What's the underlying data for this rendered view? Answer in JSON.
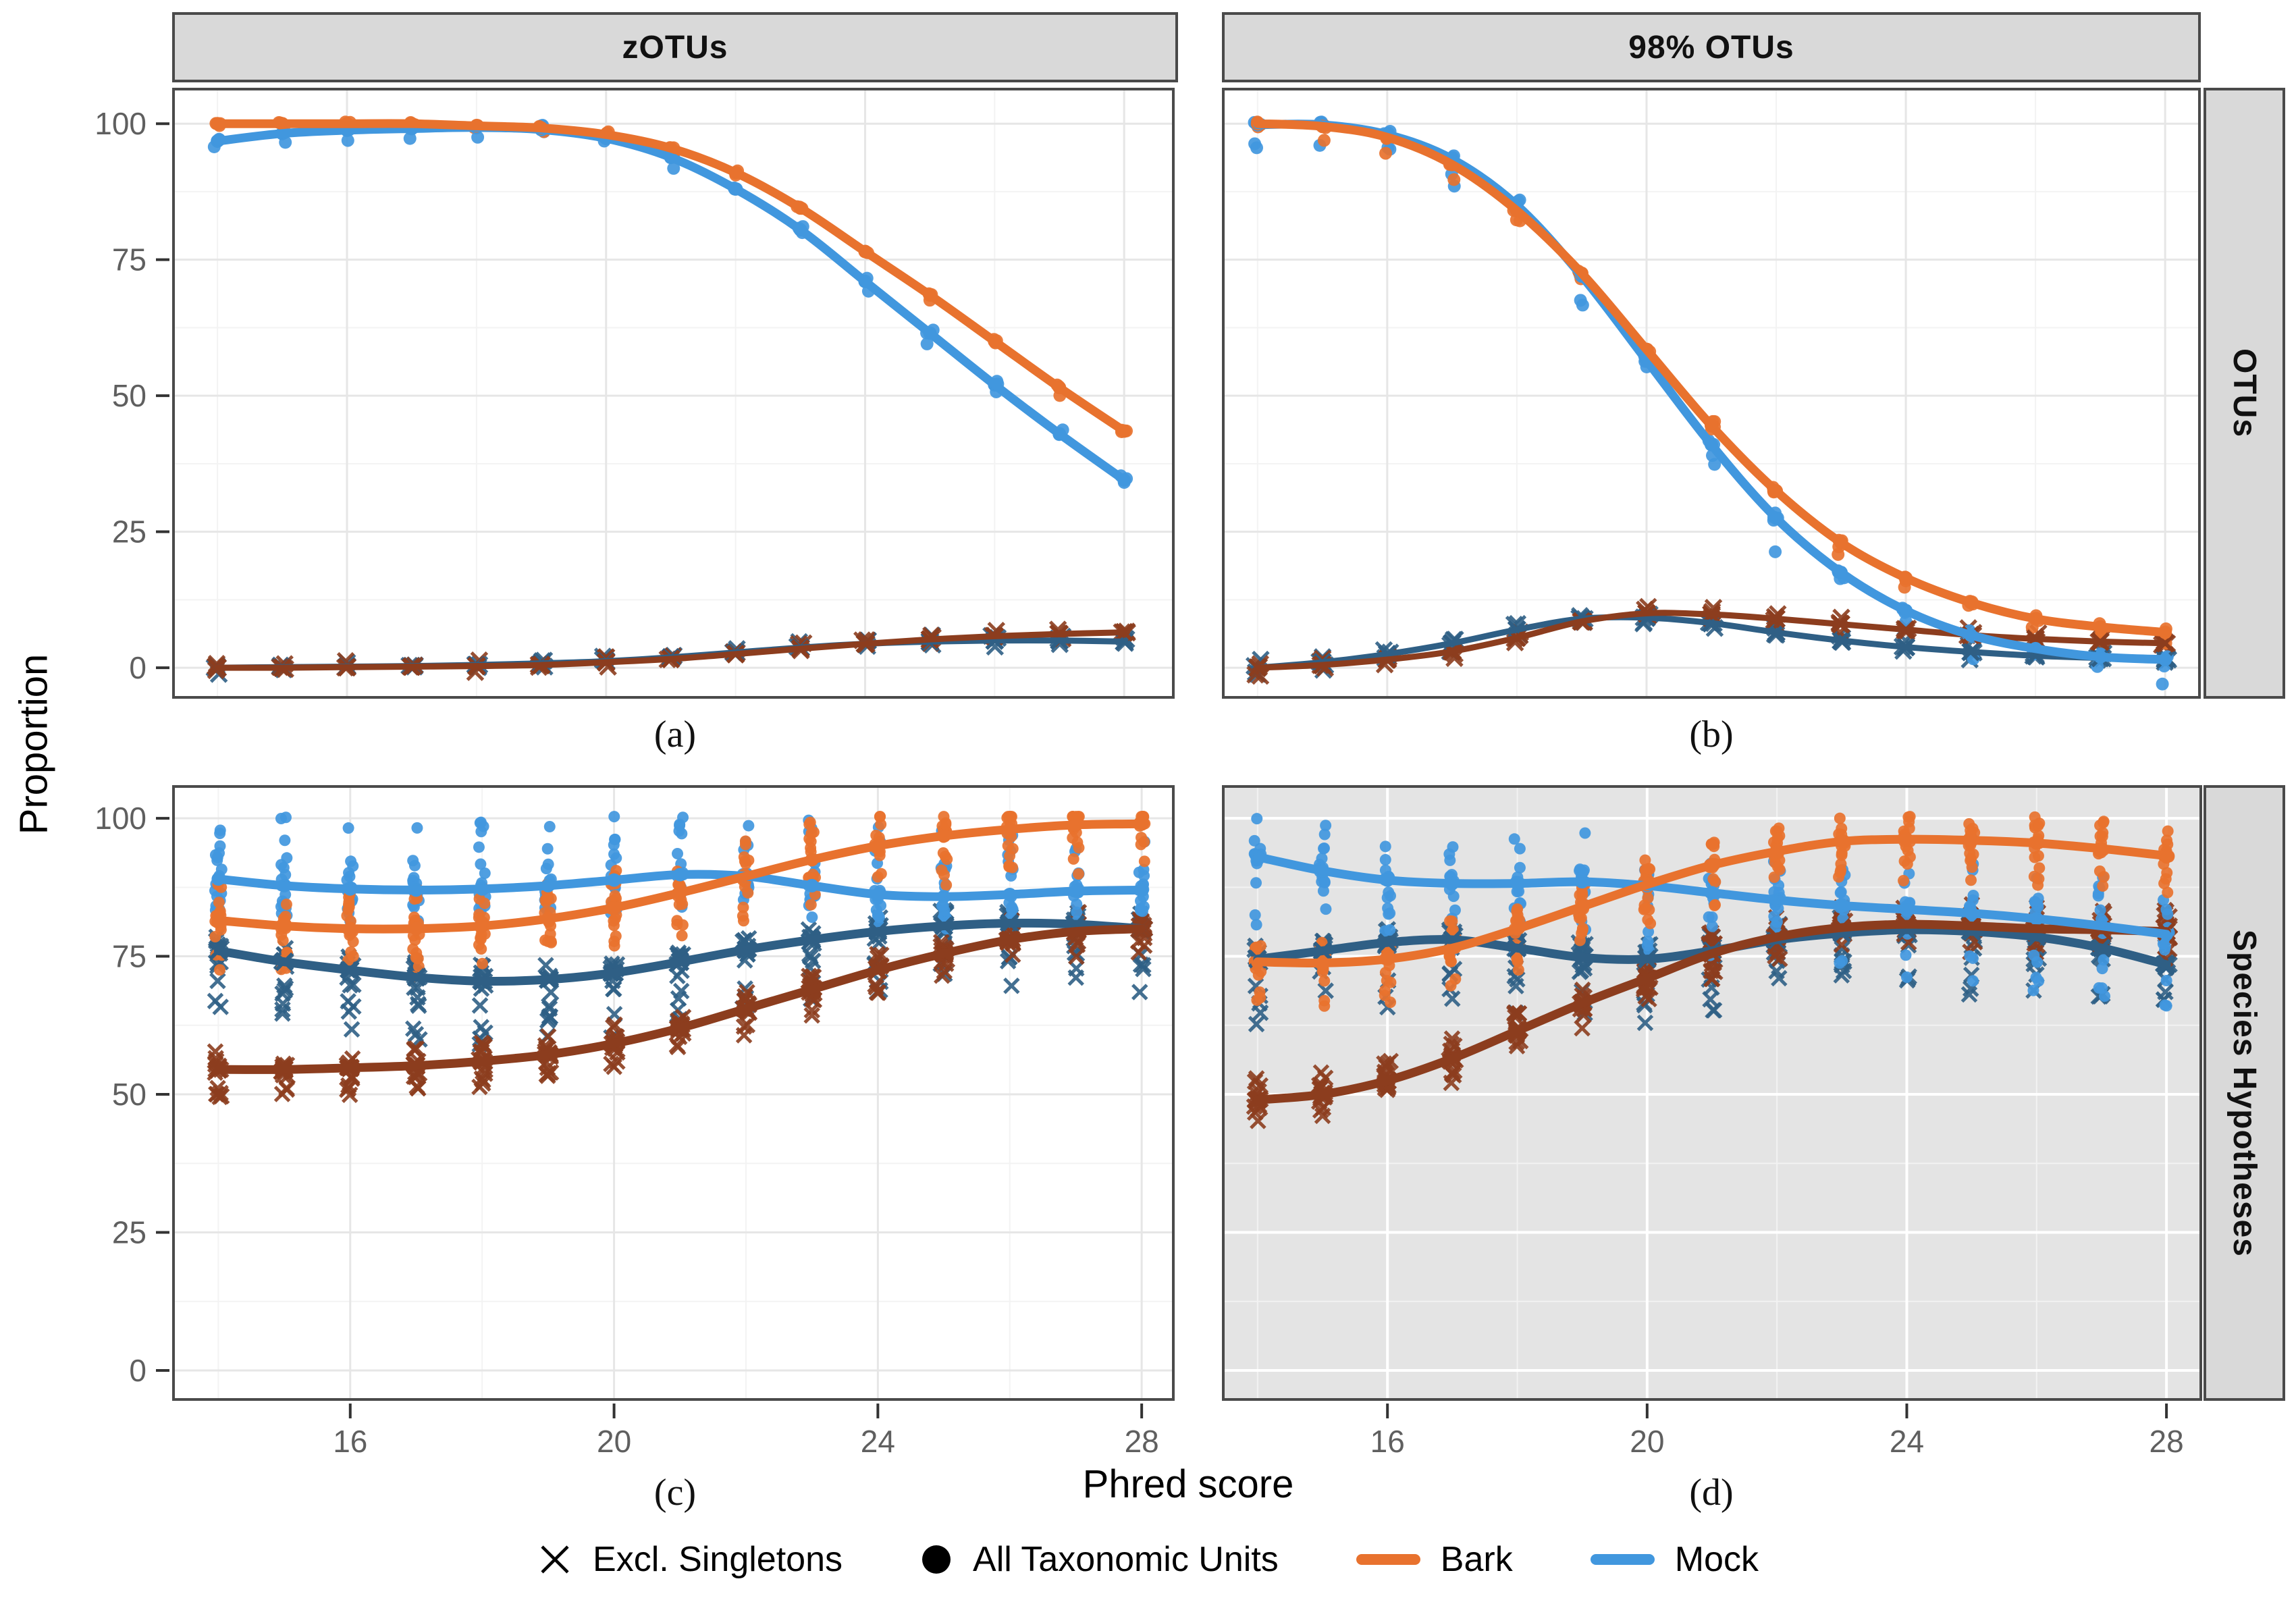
{
  "axis": {
    "y_title": "Proportion",
    "x_title": "Phred score"
  },
  "strips": {
    "top_left": "zOTUs",
    "top_right": "98% OTUs",
    "right_top": "OTUs",
    "right_bottom": "Species Hypotheses"
  },
  "panel_letters": {
    "a": "(a)",
    "b": "(b)",
    "c": "(c)",
    "d": "(d)"
  },
  "legend": {
    "items": [
      {
        "glyph": "x-mark",
        "label": "Excl. Singletons"
      },
      {
        "glyph": "dot",
        "label": "All Taxonomic Units"
      },
      {
        "glyph": "line",
        "series": "bark",
        "label": "Bark"
      },
      {
        "glyph": "line",
        "series": "mock",
        "label": "Mock"
      }
    ]
  },
  "colors": {
    "bark": "#E8722E",
    "mock": "#4197DE",
    "bark_excl": "#8C3D1E",
    "mock_excl": "#2F5F85",
    "strip_bg": "#D9D9D9",
    "strip_border": "#4A4A4A",
    "panel_border": "#4A4A4A",
    "grid_major": "#E6E6E6",
    "grid_minor": "#F3F3F3",
    "panel_grey_bg": "#E4E4E4",
    "grid_on_grey_major": "#FFFFFF",
    "grid_on_grey_minor": "#F2F2F2",
    "tick_label": "#5F5F5F",
    "tick_mark": "#333333"
  },
  "chart_data": [
    {
      "id": "a",
      "type": "line",
      "title": "zOTUs",
      "facet_row": "OTUs",
      "xlabel": "Phred score",
      "ylabel": "Proportion",
      "x": [
        14,
        15,
        16,
        17,
        18,
        19,
        20,
        21,
        22,
        23,
        24,
        25,
        26,
        27,
        28
      ],
      "xticks": [
        16,
        20,
        24,
        28
      ],
      "yticks": [
        0,
        25,
        50,
        75,
        100
      ],
      "xlim": [
        13.3,
        28.78
      ],
      "ylim": [
        -5.7,
        106.6
      ],
      "show_y_ticks": true,
      "show_x_ticks": false,
      "background": "#FFFFFF",
      "series": [
        {
          "name": "Mock — Excl. Singletons",
          "color": "mock_excl",
          "marker": "x",
          "width": 9,
          "values": [
            0,
            0.1,
            0.2,
            0.3,
            0.5,
            0.8,
            1.2,
            1.9,
            2.8,
            3.7,
            4.4,
            4.8,
            5,
            5,
            4.8
          ],
          "scatter": {
            "n": 3,
            "up": 1.2,
            "down": 1.2
          }
        },
        {
          "name": "Bark — Excl. Singletons",
          "color": "bark_excl",
          "marker": "x",
          "width": 9,
          "values": [
            0,
            0,
            0.1,
            0.2,
            0.3,
            0.5,
            1,
            1.6,
            2.5,
            3.5,
            4.4,
            5.2,
            5.8,
            6.2,
            6.5
          ],
          "scatter": {
            "n": 3,
            "up": 1.2,
            "down": 1.2
          }
        },
        {
          "name": "Mock — All Taxonomic Units",
          "color": "mock",
          "marker": "circle",
          "width": 13,
          "values": [
            96.8,
            98.2,
            98.8,
            99.1,
            99.3,
            98.9,
            97.3,
            93.8,
            88,
            80.5,
            71,
            61.5,
            52,
            43,
            34.5
          ],
          "scatter": {
            "n": 3,
            "up": 1,
            "down": 2.5
          }
        },
        {
          "name": "Bark — All Taxonomic Units",
          "color": "bark",
          "marker": "circle",
          "width": 13,
          "values": [
            100,
            100,
            100,
            100,
            99.6,
            99.2,
            98,
            95.5,
            91,
            84.5,
            76.5,
            68.5,
            60,
            51.5,
            43.5
          ],
          "scatter": {
            "n": 3,
            "up": 0.5,
            "down": 1.5
          }
        }
      ]
    },
    {
      "id": "b",
      "type": "line",
      "title": "98% OTUs",
      "facet_row": "OTUs",
      "xlabel": "Phred score",
      "ylabel": "Proportion",
      "x": [
        14,
        15,
        16,
        17,
        18,
        19,
        20,
        21,
        22,
        23,
        24,
        25,
        26,
        27,
        28
      ],
      "xticks": [
        16,
        20,
        24,
        28
      ],
      "yticks": [
        0,
        25,
        50,
        75,
        100
      ],
      "xlim": [
        13.45,
        28.55
      ],
      "ylim": [
        -5.7,
        106.6
      ],
      "show_y_ticks": false,
      "show_x_ticks": false,
      "background": "#FFFFFF",
      "series": [
        {
          "name": "Mock — Excl. Singletons",
          "color": "mock_excl",
          "marker": "x",
          "width": 9,
          "values": [
            0,
            1,
            2.5,
            4.5,
            7,
            9,
            9.2,
            8.2,
            6.5,
            5,
            3.8,
            2.9,
            2.2,
            1.8,
            1.5
          ],
          "scatter": {
            "n": 4,
            "up": 1.5,
            "down": 1.5
          }
        },
        {
          "name": "Bark — Excl. Singletons",
          "color": "bark_excl",
          "marker": "x",
          "width": 9,
          "values": [
            0,
            0.5,
            1.5,
            3,
            5.5,
            8.5,
            10,
            9.8,
            9,
            8,
            7,
            6,
            5.3,
            4.8,
            4.5
          ],
          "scatter": {
            "n": 4,
            "up": 1.5,
            "down": 1.5
          }
        },
        {
          "name": "Mock — All Taxonomic Units",
          "color": "mock",
          "marker": "circle",
          "width": 13,
          "values": [
            99.8,
            99.8,
            98,
            93.5,
            85,
            72,
            56.5,
            41,
            27.5,
            17.5,
            10.5,
            6,
            3.5,
            2,
            1.5
          ],
          "scatter": {
            "n": 5,
            "up": 1,
            "down": 7
          }
        },
        {
          "name": "Bark — All Taxonomic Units",
          "color": "bark",
          "marker": "circle",
          "width": 13,
          "values": [
            100,
            99.5,
            97.5,
            92.5,
            84,
            72.5,
            58.5,
            44.5,
            32.5,
            23,
            16.5,
            12,
            9,
            7.5,
            6.5
          ],
          "scatter": {
            "n": 4,
            "up": 0.8,
            "down": 3
          }
        }
      ]
    },
    {
      "id": "c",
      "type": "line",
      "title": "zOTUs",
      "facet_row": "Species Hypotheses",
      "xlabel": "Phred score",
      "ylabel": "Proportion",
      "x": [
        14,
        15,
        16,
        17,
        18,
        19,
        20,
        21,
        22,
        23,
        24,
        25,
        26,
        27,
        28
      ],
      "xticks": [
        16,
        20,
        24,
        28
      ],
      "yticks": [
        0,
        25,
        50,
        75,
        100
      ],
      "xlim": [
        13.3,
        28.5
      ],
      "ylim": [
        -5.5,
        106
      ],
      "show_y_ticks": true,
      "show_x_ticks": true,
      "background": "#FFFFFF",
      "series": [
        {
          "name": "Mock — Excl. Singletons",
          "color": "mock_excl",
          "marker": "x",
          "width": 13,
          "values": [
            76,
            74,
            72.5,
            71.2,
            70.5,
            70.8,
            72,
            74,
            76.2,
            78,
            79.5,
            80.5,
            81,
            80.8,
            80
          ],
          "scatter": {
            "n": 16,
            "up": 3,
            "down": 12
          }
        },
        {
          "name": "Bark — Excl. Singletons",
          "color": "bark_excl",
          "marker": "x",
          "width": 13,
          "values": [
            54.5,
            54.5,
            54.8,
            55.2,
            56,
            57.2,
            59.2,
            62,
            65.5,
            69,
            72.5,
            75.5,
            78,
            79.5,
            80
          ],
          "scatter": {
            "n": 16,
            "up": 3.5,
            "down": 5
          }
        },
        {
          "name": "Mock — All Taxonomic Units",
          "color": "mock",
          "marker": "circle",
          "width": 13,
          "values": [
            89,
            87.8,
            87.2,
            87,
            87.2,
            87.8,
            88.8,
            89.8,
            89.5,
            87.8,
            86.2,
            85.8,
            86.2,
            86.8,
            87
          ],
          "scatter": {
            "n": 18,
            "up": 13,
            "down": 6
          }
        },
        {
          "name": "Bark — All Taxonomic Units",
          "color": "bark",
          "marker": "circle",
          "width": 13,
          "values": [
            81.5,
            80.5,
            80,
            80,
            80.5,
            81.8,
            83.8,
            86.5,
            89.5,
            92.5,
            95,
            96.8,
            98,
            98.8,
            99
          ],
          "scatter": {
            "n": 18,
            "up": 7,
            "down": 9
          }
        }
      ]
    },
    {
      "id": "d",
      "type": "line",
      "title": "98% OTUs",
      "facet_row": "Species Hypotheses",
      "xlabel": "Phred score",
      "ylabel": "Proportion",
      "x": [
        14,
        15,
        16,
        17,
        18,
        19,
        20,
        21,
        22,
        23,
        24,
        25,
        26,
        27,
        28
      ],
      "xticks": [
        16,
        20,
        24,
        28
      ],
      "yticks": [
        0,
        25,
        50,
        75,
        100
      ],
      "xlim": [
        13.45,
        28.55
      ],
      "ylim": [
        -5.5,
        106
      ],
      "show_y_ticks": false,
      "show_x_ticks": true,
      "background": "#E4E4E4",
      "series": [
        {
          "name": "Mock — Excl. Singletons",
          "color": "mock_excl",
          "marker": "x",
          "width": 13,
          "values": [
            74.5,
            76,
            77.5,
            78,
            76.5,
            74.8,
            74.5,
            76,
            78,
            79.2,
            79.8,
            79.5,
            78.5,
            76.5,
            73.5
          ],
          "scatter": {
            "n": 16,
            "up": 3,
            "down": 12
          }
        },
        {
          "name": "Bark — Excl. Singletons",
          "color": "bark_excl",
          "marker": "x",
          "width": 13,
          "values": [
            49,
            50,
            52.5,
            56.5,
            61.5,
            66.5,
            71,
            75.5,
            78.5,
            80.2,
            80.8,
            80.5,
            80,
            79.8,
            79.5
          ],
          "scatter": {
            "n": 16,
            "up": 4,
            "down": 5
          }
        },
        {
          "name": "Mock — All Taxonomic Units",
          "color": "mock",
          "marker": "circle",
          "width": 13,
          "values": [
            93,
            90.5,
            88.8,
            88.2,
            88.2,
            88.5,
            87.8,
            86.5,
            85.2,
            84.2,
            83.5,
            82.8,
            81.8,
            80.5,
            79
          ],
          "scatter": {
            "n": 16,
            "up": 9,
            "down": 13
          }
        },
        {
          "name": "Bark — All Taxonomic Units",
          "color": "bark",
          "marker": "circle",
          "width": 13,
          "values": [
            74,
            73.8,
            74.5,
            76.5,
            80,
            84,
            88,
            91.5,
            94,
            95.8,
            96.2,
            96,
            95.5,
            94.5,
            93.2
          ],
          "scatter": {
            "n": 18,
            "up": 5,
            "down": 8
          }
        }
      ]
    }
  ]
}
